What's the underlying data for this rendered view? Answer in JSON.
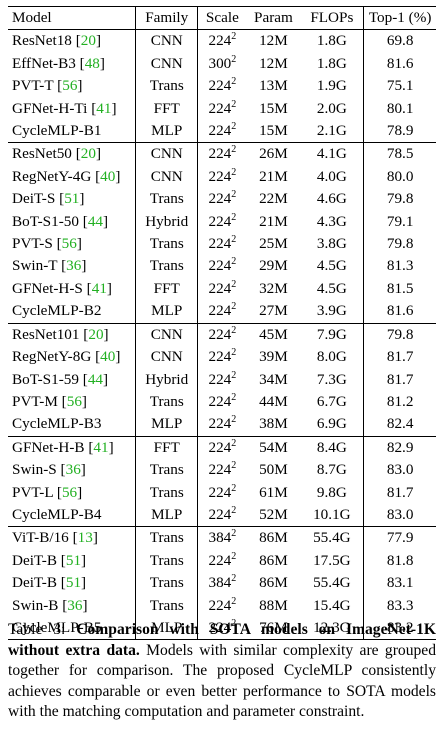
{
  "table": {
    "headers": {
      "model": "Model",
      "family": "Family",
      "scale": "Scale",
      "param": "Param",
      "flops": "FLOPs",
      "top1": "Top-1 (%)"
    },
    "groups": [
      [
        {
          "model": "ResNet18",
          "ref": "20",
          "family": "CNN",
          "scale_base": "224",
          "scale_exp": "2",
          "param": "12M",
          "flops": "1.8G",
          "top1": "69.8"
        },
        {
          "model": "EffNet-B3",
          "ref": "48",
          "family": "CNN",
          "scale_base": "300",
          "scale_exp": "2",
          "param": "12M",
          "flops": "1.8G",
          "top1": "81.6"
        },
        {
          "model": "PVT-T",
          "ref": "56",
          "family": "Trans",
          "scale_base": "224",
          "scale_exp": "2",
          "param": "13M",
          "flops": "1.9G",
          "top1": "75.1"
        },
        {
          "model": "GFNet-H-Ti",
          "ref": "41",
          "family": "FFT",
          "scale_base": "224",
          "scale_exp": "2",
          "param": "15M",
          "flops": "2.0G",
          "top1": "80.1"
        },
        {
          "model": "CycleMLP-B1",
          "ref": "",
          "family": "MLP",
          "scale_base": "224",
          "scale_exp": "2",
          "param": "15M",
          "flops": "2.1G",
          "top1": "78.9"
        }
      ],
      [
        {
          "model": "ResNet50",
          "ref": "20",
          "family": "CNN",
          "scale_base": "224",
          "scale_exp": "2",
          "param": "26M",
          "flops": "4.1G",
          "top1": "78.5"
        },
        {
          "model": "RegNetY-4G",
          "ref": "40",
          "family": "CNN",
          "scale_base": "224",
          "scale_exp": "2",
          "param": "21M",
          "flops": "4.0G",
          "top1": "80.0"
        },
        {
          "model": "DeiT-S",
          "ref": "51",
          "family": "Trans",
          "scale_base": "224",
          "scale_exp": "2",
          "param": "22M",
          "flops": "4.6G",
          "top1": "79.8"
        },
        {
          "model": "BoT-S1-50",
          "ref": "44",
          "family": "Hybrid",
          "scale_base": "224",
          "scale_exp": "2",
          "param": "21M",
          "flops": "4.3G",
          "top1": "79.1"
        },
        {
          "model": "PVT-S",
          "ref": "56",
          "family": "Trans",
          "scale_base": "224",
          "scale_exp": "2",
          "param": "25M",
          "flops": "3.8G",
          "top1": "79.8"
        },
        {
          "model": "Swin-T",
          "ref": "36",
          "family": "Trans",
          "scale_base": "224",
          "scale_exp": "2",
          "param": "29M",
          "flops": "4.5G",
          "top1": "81.3"
        },
        {
          "model": "GFNet-H-S",
          "ref": "41",
          "family": "FFT",
          "scale_base": "224",
          "scale_exp": "2",
          "param": "32M",
          "flops": "4.5G",
          "top1": "81.5"
        },
        {
          "model": "CycleMLP-B2",
          "ref": "",
          "family": "MLP",
          "scale_base": "224",
          "scale_exp": "2",
          "param": "27M",
          "flops": "3.9G",
          "top1": "81.6"
        }
      ],
      [
        {
          "model": "ResNet101",
          "ref": "20",
          "family": "CNN",
          "scale_base": "224",
          "scale_exp": "2",
          "param": "45M",
          "flops": "7.9G",
          "top1": "79.8"
        },
        {
          "model": "RegNetY-8G",
          "ref": "40",
          "family": "CNN",
          "scale_base": "224",
          "scale_exp": "2",
          "param": "39M",
          "flops": "8.0G",
          "top1": "81.7"
        },
        {
          "model": "BoT-S1-59",
          "ref": "44",
          "family": "Hybrid",
          "scale_base": "224",
          "scale_exp": "2",
          "param": "34M",
          "flops": "7.3G",
          "top1": "81.7"
        },
        {
          "model": "PVT-M",
          "ref": "56",
          "family": "Trans",
          "scale_base": "224",
          "scale_exp": "2",
          "param": "44M",
          "flops": "6.7G",
          "top1": "81.2"
        },
        {
          "model": "CycleMLP-B3",
          "ref": "",
          "family": "MLP",
          "scale_base": "224",
          "scale_exp": "2",
          "param": "38M",
          "flops": "6.9G",
          "top1": "82.4"
        }
      ],
      [
        {
          "model": "GFNet-H-B",
          "ref": "41",
          "family": "FFT",
          "scale_base": "224",
          "scale_exp": "2",
          "param": "54M",
          "flops": "8.4G",
          "top1": "82.9"
        },
        {
          "model": "Swin-S",
          "ref": "36",
          "family": "Trans",
          "scale_base": "224",
          "scale_exp": "2",
          "param": "50M",
          "flops": "8.7G",
          "top1": "83.0"
        },
        {
          "model": "PVT-L",
          "ref": "56",
          "family": "Trans",
          "scale_base": "224",
          "scale_exp": "2",
          "param": "61M",
          "flops": "9.8G",
          "top1": "81.7"
        },
        {
          "model": "CycleMLP-B4",
          "ref": "",
          "family": "MLP",
          "scale_base": "224",
          "scale_exp": "2",
          "param": "52M",
          "flops": "10.1G",
          "top1": "83.0"
        }
      ],
      [
        {
          "model": "ViT-B/16",
          "ref": "13",
          "family": "Trans",
          "scale_base": "384",
          "scale_exp": "2",
          "param": "86M",
          "flops": "55.4G",
          "top1": "77.9"
        },
        {
          "model": "DeiT-B",
          "ref": "51",
          "family": "Trans",
          "scale_base": "224",
          "scale_exp": "2",
          "param": "86M",
          "flops": "17.5G",
          "top1": "81.8"
        },
        {
          "model": "DeiT-B",
          "ref": "51",
          "family": "Trans",
          "scale_base": "384",
          "scale_exp": "2",
          "param": "86M",
          "flops": "55.4G",
          "top1": "83.1"
        },
        {
          "model": "Swin-B",
          "ref": "36",
          "family": "Trans",
          "scale_base": "224",
          "scale_exp": "2",
          "param": "88M",
          "flops": "15.4G",
          "top1": "83.3"
        },
        {
          "model": "CycleMLP-B5",
          "ref": "",
          "family": "MLP",
          "scale_base": "224",
          "scale_exp": "2",
          "param": "76M",
          "flops": "12.3G",
          "top1": "83.2"
        }
      ]
    ]
  },
  "caption": {
    "label": "Table 3:",
    "title": "Comparison with SOTA models on ImageNet-1K without extra data.",
    "body": "Models with similar complexity are grouped together for comparison. The proposed CycleMLP consistently achieves comparable or even better performance to SOTA models with the matching computation and parameter constraint."
  }
}
